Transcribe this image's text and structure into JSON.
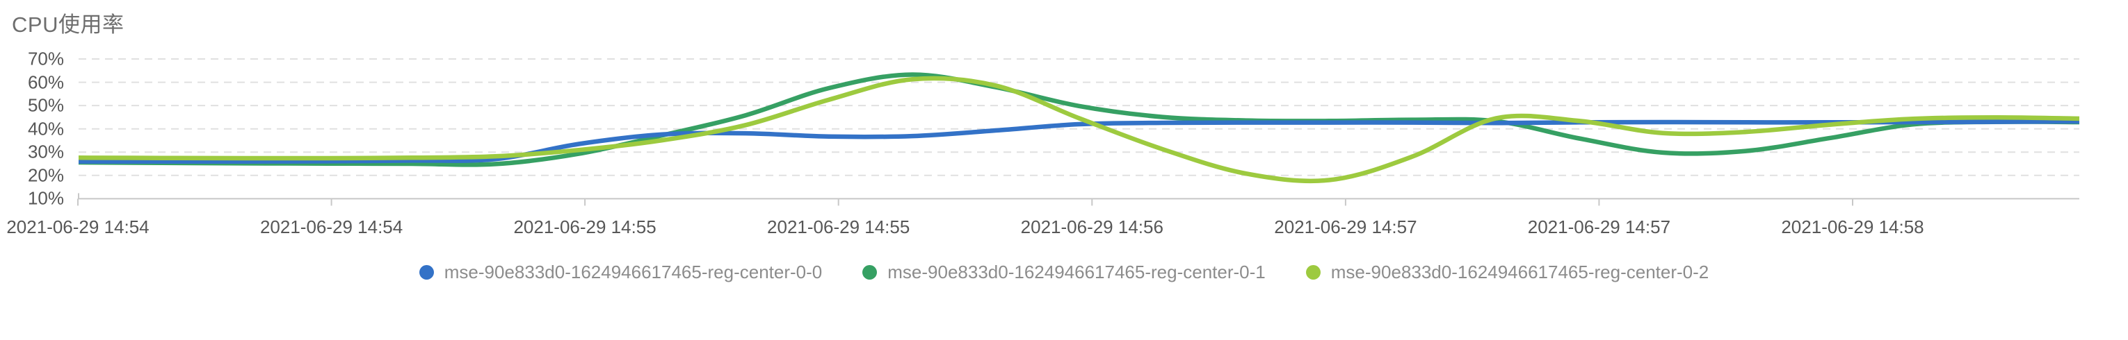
{
  "title": "CPU使用率",
  "colors": {
    "series_blue": "#3372C7",
    "series_green": "#36A063",
    "series_lime": "#9DCA3F",
    "gridline": "#E0E0E0",
    "axis_line": "#C8C8C8",
    "axis_label_text": "#575757",
    "legend_text": "#8C8C8C",
    "title_text": "#6E6E6E",
    "background": "#FFFFFF"
  },
  "chart_data": {
    "type": "line",
    "title": "CPU使用率",
    "y_unit": "%",
    "ylim": [
      10,
      70
    ],
    "grid": "horizontal-dashed",
    "legend_position": "bottom-center",
    "smooth": true,
    "y_tick_labels": [
      "70%",
      "60%",
      "50%",
      "40%",
      "30%",
      "20%",
      "10%"
    ],
    "y_tick_values": [
      70,
      60,
      50,
      40,
      30,
      20,
      10
    ],
    "x_tick_labels": [
      "2021-06-29 14:54",
      "2021-06-29 14:54",
      "2021-06-29 14:55",
      "2021-06-29 14:55",
      "2021-06-29 14:56",
      "2021-06-29 14:57",
      "2021-06-29 14:57",
      "2021-06-29 14:58"
    ],
    "series": [
      {
        "name": "mse-90e833d0-1624946617465-reg-center-0-0",
        "color": "#3372C7",
        "values": [
          26.0,
          26.0,
          26.0,
          26.1,
          26.4,
          27.0,
          33.5,
          37.6,
          38.1,
          36.7,
          36.9,
          39.3,
          42.0,
          42.6,
          42.7,
          42.7,
          42.7,
          42.5,
          42.8,
          42.9,
          42.8,
          42.8,
          42.9,
          43.0,
          43.2
        ]
      },
      {
        "name": "mse-90e833d0-1624946617465-reg-center-0-1",
        "color": "#36A063",
        "values": [
          25.6,
          25.4,
          25.2,
          25.1,
          25.0,
          24.9,
          29.3,
          37.2,
          45.8,
          57.5,
          63.3,
          57.9,
          49.8,
          45.1,
          43.6,
          43.4,
          43.9,
          43.3,
          35.9,
          29.8,
          30.5,
          36.0,
          41.9,
          43.0,
          42.9
        ]
      },
      {
        "name": "mse-90e833d0-1624946617465-reg-center-0-2",
        "color": "#9DCA3F",
        "values": [
          27.6,
          27.5,
          27.4,
          27.4,
          27.6,
          28.2,
          30.9,
          35.1,
          41.6,
          52.5,
          61.3,
          58.6,
          44.6,
          31.3,
          20.8,
          18.0,
          28.1,
          44.5,
          43.4,
          38.2,
          38.7,
          41.8,
          44.3,
          44.9,
          44.4
        ]
      }
    ]
  }
}
